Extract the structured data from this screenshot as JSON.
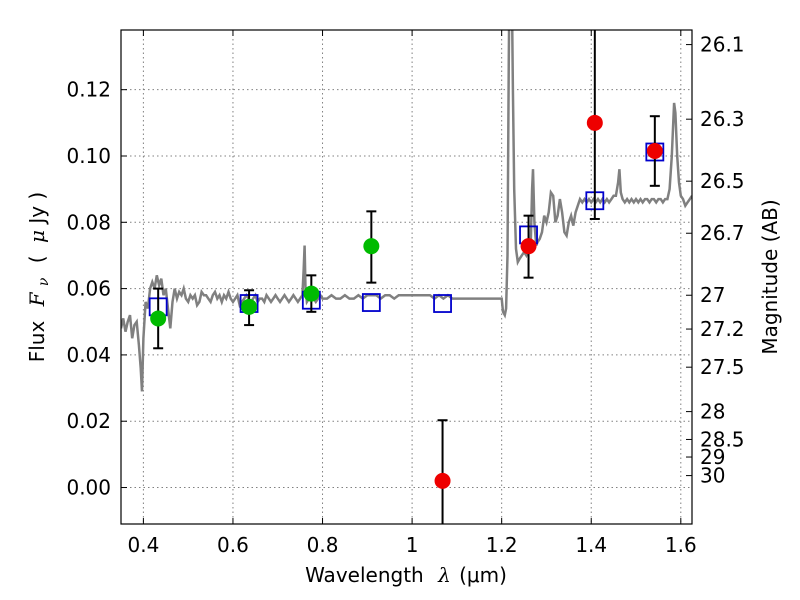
{
  "chart_data": {
    "type": "scatter",
    "xlabel": {
      "text": "Wavelength",
      "symbol": "λ",
      "unit": "(μm)"
    },
    "ylabel": {
      "text": "Flux",
      "symbol": "F",
      "subscript": "ν",
      "unit_open": "(",
      "unit_mu": "μ",
      "unit_rest": "Jy )"
    },
    "ylabel_right": "Magnitude (AB)",
    "xlim": [
      0.35,
      1.625
    ],
    "ylim": [
      -0.011,
      0.138
    ],
    "grid": true,
    "x_ticks": [
      {
        "value": 0.4,
        "label": "0.4"
      },
      {
        "value": 0.6,
        "label": "0.6"
      },
      {
        "value": 0.8,
        "label": "0.8"
      },
      {
        "value": 1.0,
        "label": "1"
      },
      {
        "value": 1.2,
        "label": "1.2"
      },
      {
        "value": 1.4,
        "label": "1.4"
      },
      {
        "value": 1.6,
        "label": "1.6"
      }
    ],
    "y_ticks": [
      {
        "value": 0.0,
        "label": "0.00"
      },
      {
        "value": 0.02,
        "label": "0.02"
      },
      {
        "value": 0.04,
        "label": "0.04"
      },
      {
        "value": 0.06,
        "label": "0.06"
      },
      {
        "value": 0.08,
        "label": "0.08"
      },
      {
        "value": 0.1,
        "label": "0.10"
      },
      {
        "value": 0.12,
        "label": "0.12"
      }
    ],
    "mag_ticks": [
      {
        "value": 0.1336,
        "label": "26.1"
      },
      {
        "value": 0.1111,
        "label": "26.3"
      },
      {
        "value": 0.0924,
        "label": "26.5"
      },
      {
        "value": 0.0767,
        "label": "26.7"
      },
      {
        "value": 0.058,
        "label": "27"
      },
      {
        "value": 0.0478,
        "label": "27.2"
      },
      {
        "value": 0.0363,
        "label": "27.5"
      },
      {
        "value": 0.0229,
        "label": "28"
      },
      {
        "value": 0.0145,
        "label": "28.5"
      },
      {
        "value": 0.0092,
        "label": "29"
      },
      {
        "value": 0.0036,
        "label": "30"
      }
    ],
    "colors": {
      "model_line": "#808080",
      "model_box": "#0000cc",
      "green_points": "#00bb00",
      "red_points": "#ee0000",
      "grid": "#808080"
    },
    "series": [
      {
        "marker": "open-square",
        "color": "#0000cc",
        "points": [
          {
            "x": 0.433,
            "y": 0.0545
          },
          {
            "x": 0.636,
            "y": 0.0555
          },
          {
            "x": 0.775,
            "y": 0.0565
          },
          {
            "x": 0.909,
            "y": 0.0558
          },
          {
            "x": 1.068,
            "y": 0.0555
          },
          {
            "x": 1.26,
            "y": 0.0762
          },
          {
            "x": 1.408,
            "y": 0.0865
          },
          {
            "x": 1.542,
            "y": 0.1012
          }
        ]
      },
      {
        "marker": "filled-circle",
        "color": "#00bb00",
        "points": [
          {
            "x": 0.433,
            "y": 0.051,
            "err_low": 0.009,
            "err_high": 0.009
          },
          {
            "x": 0.636,
            "y": 0.0545,
            "err_low": 0.0055,
            "err_high": 0.005
          },
          {
            "x": 0.775,
            "y": 0.0585,
            "err_low": 0.0055,
            "err_high": 0.0055
          },
          {
            "x": 0.909,
            "y": 0.0728,
            "err_low": 0.011,
            "err_high": 0.0105
          }
        ]
      },
      {
        "marker": "filled-circle",
        "color": "#ee0000",
        "points": [
          {
            "x": 1.068,
            "y": 0.002,
            "err_low": 0.014,
            "err_high": 0.0183
          },
          {
            "x": 1.26,
            "y": 0.0728,
            "err_low": 0.0095,
            "err_high": 0.0092
          },
          {
            "x": 1.408,
            "y": 0.11,
            "err_low": 0.029,
            "err_high": 0.031
          },
          {
            "x": 1.542,
            "y": 0.1015,
            "err_low": 0.0105,
            "err_high": 0.0105
          }
        ]
      }
    ],
    "model_spectrum": [
      [
        0.35,
        0.048
      ],
      [
        0.355,
        0.051
      ],
      [
        0.36,
        0.047
      ],
      [
        0.365,
        0.05
      ],
      [
        0.37,
        0.052
      ],
      [
        0.375,
        0.045
      ],
      [
        0.38,
        0.049
      ],
      [
        0.385,
        0.05
      ],
      [
        0.39,
        0.043
      ],
      [
        0.394,
        0.036
      ],
      [
        0.397,
        0.029
      ],
      [
        0.4,
        0.045
      ],
      [
        0.405,
        0.056
      ],
      [
        0.41,
        0.054
      ],
      [
        0.415,
        0.06
      ],
      [
        0.42,
        0.062
      ],
      [
        0.425,
        0.06
      ],
      [
        0.43,
        0.064
      ],
      [
        0.435,
        0.061
      ],
      [
        0.44,
        0.063
      ],
      [
        0.445,
        0.058
      ],
      [
        0.45,
        0.06
      ],
      [
        0.455,
        0.054
      ],
      [
        0.46,
        0.048
      ],
      [
        0.465,
        0.056
      ],
      [
        0.47,
        0.06
      ],
      [
        0.475,
        0.057
      ],
      [
        0.48,
        0.059
      ],
      [
        0.485,
        0.058
      ],
      [
        0.49,
        0.06
      ],
      [
        0.495,
        0.057
      ],
      [
        0.5,
        0.056
      ],
      [
        0.505,
        0.058
      ],
      [
        0.51,
        0.057
      ],
      [
        0.515,
        0.058
      ],
      [
        0.52,
        0.055
      ],
      [
        0.525,
        0.056
      ],
      [
        0.53,
        0.059
      ],
      [
        0.535,
        0.058
      ],
      [
        0.54,
        0.058
      ],
      [
        0.545,
        0.057
      ],
      [
        0.55,
        0.056
      ],
      [
        0.555,
        0.058
      ],
      [
        0.56,
        0.059
      ],
      [
        0.565,
        0.057
      ],
      [
        0.57,
        0.058
      ],
      [
        0.575,
        0.056
      ],
      [
        0.58,
        0.058
      ],
      [
        0.585,
        0.057
      ],
      [
        0.59,
        0.059
      ],
      [
        0.595,
        0.057
      ],
      [
        0.6,
        0.056
      ],
      [
        0.605,
        0.057
      ],
      [
        0.61,
        0.058
      ],
      [
        0.615,
        0.055
      ],
      [
        0.62,
        0.056
      ],
      [
        0.625,
        0.057
      ],
      [
        0.63,
        0.058
      ],
      [
        0.635,
        0.057
      ],
      [
        0.64,
        0.056
      ],
      [
        0.645,
        0.057
      ],
      [
        0.65,
        0.058
      ],
      [
        0.655,
        0.056
      ],
      [
        0.66,
        0.057
      ],
      [
        0.665,
        0.057
      ],
      [
        0.67,
        0.056
      ],
      [
        0.675,
        0.058
      ],
      [
        0.68,
        0.057
      ],
      [
        0.685,
        0.056
      ],
      [
        0.69,
        0.057
      ],
      [
        0.695,
        0.058
      ],
      [
        0.7,
        0.057
      ],
      [
        0.705,
        0.056
      ],
      [
        0.71,
        0.057
      ],
      [
        0.715,
        0.058
      ],
      [
        0.72,
        0.057
      ],
      [
        0.725,
        0.056
      ],
      [
        0.73,
        0.057
      ],
      [
        0.735,
        0.058
      ],
      [
        0.74,
        0.057
      ],
      [
        0.745,
        0.056
      ],
      [
        0.75,
        0.057
      ],
      [
        0.755,
        0.058
      ],
      [
        0.758,
        0.066
      ],
      [
        0.76,
        0.073
      ],
      [
        0.762,
        0.06
      ],
      [
        0.765,
        0.056
      ],
      [
        0.77,
        0.057
      ],
      [
        0.775,
        0.058
      ],
      [
        0.78,
        0.057
      ],
      [
        0.785,
        0.056
      ],
      [
        0.79,
        0.057
      ],
      [
        0.795,
        0.058
      ],
      [
        0.8,
        0.057
      ],
      [
        0.81,
        0.057
      ],
      [
        0.82,
        0.058
      ],
      [
        0.83,
        0.057
      ],
      [
        0.84,
        0.057
      ],
      [
        0.85,
        0.058
      ],
      [
        0.86,
        0.057
      ],
      [
        0.87,
        0.057
      ],
      [
        0.88,
        0.058
      ],
      [
        0.89,
        0.057
      ],
      [
        0.9,
        0.058
      ],
      [
        0.91,
        0.058
      ],
      [
        0.92,
        0.058
      ],
      [
        0.93,
        0.057
      ],
      [
        0.94,
        0.058
      ],
      [
        0.95,
        0.058
      ],
      [
        0.96,
        0.057
      ],
      [
        0.97,
        0.058
      ],
      [
        0.98,
        0.058
      ],
      [
        0.99,
        0.058
      ],
      [
        1.0,
        0.058
      ],
      [
        1.01,
        0.058
      ],
      [
        1.02,
        0.058
      ],
      [
        1.03,
        0.058
      ],
      [
        1.04,
        0.058
      ],
      [
        1.05,
        0.057
      ],
      [
        1.06,
        0.058
      ],
      [
        1.07,
        0.057
      ],
      [
        1.08,
        0.058
      ],
      [
        1.09,
        0.057
      ],
      [
        1.1,
        0.057
      ],
      [
        1.11,
        0.057
      ],
      [
        1.12,
        0.057
      ],
      [
        1.13,
        0.057
      ],
      [
        1.14,
        0.057
      ],
      [
        1.15,
        0.057
      ],
      [
        1.16,
        0.057
      ],
      [
        1.17,
        0.057
      ],
      [
        1.18,
        0.057
      ],
      [
        1.19,
        0.057
      ],
      [
        1.2,
        0.057
      ],
      [
        1.203,
        0.053
      ],
      [
        1.207,
        0.052
      ],
      [
        1.21,
        0.054
      ],
      [
        1.213,
        0.07
      ],
      [
        1.216,
        0.13
      ],
      [
        1.218,
        0.16
      ],
      [
        1.222,
        0.16
      ],
      [
        1.225,
        0.12
      ],
      [
        1.228,
        0.09
      ],
      [
        1.232,
        0.072
      ],
      [
        1.236,
        0.068
      ],
      [
        1.24,
        0.069
      ],
      [
        1.245,
        0.07
      ],
      [
        1.25,
        0.071
      ],
      [
        1.255,
        0.07
      ],
      [
        1.26,
        0.072
      ],
      [
        1.265,
        0.074
      ],
      [
        1.268,
        0.09
      ],
      [
        1.27,
        0.096
      ],
      [
        1.273,
        0.08
      ],
      [
        1.277,
        0.073
      ],
      [
        1.28,
        0.074
      ],
      [
        1.285,
        0.075
      ],
      [
        1.29,
        0.077
      ],
      [
        1.295,
        0.082
      ],
      [
        1.3,
        0.08
      ],
      [
        1.305,
        0.083
      ],
      [
        1.31,
        0.089
      ],
      [
        1.315,
        0.088
      ],
      [
        1.32,
        0.08
      ],
      [
        1.325,
        0.082
      ],
      [
        1.33,
        0.087
      ],
      [
        1.335,
        0.083
      ],
      [
        1.34,
        0.077
      ],
      [
        1.345,
        0.076
      ],
      [
        1.35,
        0.08
      ],
      [
        1.355,
        0.082
      ],
      [
        1.36,
        0.079
      ],
      [
        1.365,
        0.083
      ],
      [
        1.37,
        0.085
      ],
      [
        1.375,
        0.087
      ],
      [
        1.38,
        0.086
      ],
      [
        1.385,
        0.087
      ],
      [
        1.39,
        0.086
      ],
      [
        1.395,
        0.087
      ],
      [
        1.4,
        0.086
      ],
      [
        1.405,
        0.087
      ],
      [
        1.41,
        0.086
      ],
      [
        1.415,
        0.087
      ],
      [
        1.42,
        0.086
      ],
      [
        1.425,
        0.087
      ],
      [
        1.43,
        0.086
      ],
      [
        1.435,
        0.087
      ],
      [
        1.44,
        0.086
      ],
      [
        1.445,
        0.087
      ],
      [
        1.45,
        0.088
      ],
      [
        1.455,
        0.088
      ],
      [
        1.46,
        0.092
      ],
      [
        1.463,
        0.096
      ],
      [
        1.466,
        0.089
      ],
      [
        1.47,
        0.087
      ],
      [
        1.475,
        0.086
      ],
      [
        1.48,
        0.087
      ],
      [
        1.485,
        0.086
      ],
      [
        1.49,
        0.087
      ],
      [
        1.495,
        0.086
      ],
      [
        1.5,
        0.087
      ],
      [
        1.505,
        0.086
      ],
      [
        1.51,
        0.087
      ],
      [
        1.515,
        0.086
      ],
      [
        1.52,
        0.087
      ],
      [
        1.525,
        0.087
      ],
      [
        1.53,
        0.086
      ],
      [
        1.535,
        0.087
      ],
      [
        1.54,
        0.087
      ],
      [
        1.545,
        0.086
      ],
      [
        1.55,
        0.087
      ],
      [
        1.555,
        0.087
      ],
      [
        1.56,
        0.086
      ],
      [
        1.565,
        0.087
      ],
      [
        1.57,
        0.087
      ],
      [
        1.575,
        0.09
      ],
      [
        1.58,
        0.1
      ],
      [
        1.585,
        0.116
      ],
      [
        1.588,
        0.113
      ],
      [
        1.592,
        0.1
      ],
      [
        1.596,
        0.092
      ],
      [
        1.6,
        0.088
      ],
      [
        1.605,
        0.087
      ],
      [
        1.61,
        0.085
      ],
      [
        1.615,
        0.086
      ],
      [
        1.62,
        0.087
      ],
      [
        1.625,
        0.088
      ]
    ]
  }
}
